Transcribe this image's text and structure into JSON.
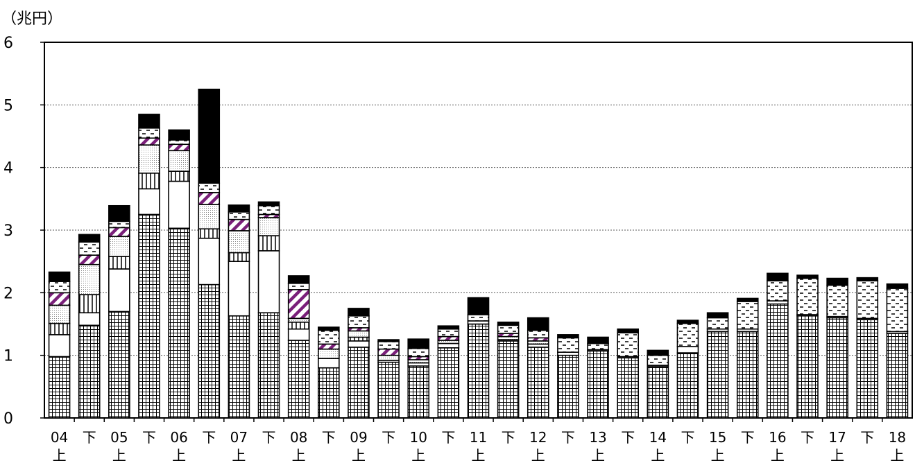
{
  "chart_data": {
    "type": "bar",
    "stacked": true,
    "ylabel": "（兆円）",
    "ylim": [
      0,
      6
    ],
    "yticks": [
      "0",
      "1",
      "2",
      "3",
      "4",
      "5",
      "6"
    ],
    "grid": true,
    "categories": [
      {
        "top": "04",
        "bottom": "上"
      },
      {
        "top": "下",
        "bottom": ""
      },
      {
        "top": "05",
        "bottom": "上"
      },
      {
        "top": "下",
        "bottom": ""
      },
      {
        "top": "06",
        "bottom": "上"
      },
      {
        "top": "下",
        "bottom": ""
      },
      {
        "top": "07",
        "bottom": "上"
      },
      {
        "top": "下",
        "bottom": ""
      },
      {
        "top": "08",
        "bottom": "上"
      },
      {
        "top": "下",
        "bottom": ""
      },
      {
        "top": "09",
        "bottom": "上"
      },
      {
        "top": "下",
        "bottom": ""
      },
      {
        "top": "10",
        "bottom": "上"
      },
      {
        "top": "下",
        "bottom": ""
      },
      {
        "top": "11",
        "bottom": "上"
      },
      {
        "top": "下",
        "bottom": ""
      },
      {
        "top": "12",
        "bottom": "上"
      },
      {
        "top": "下",
        "bottom": ""
      },
      {
        "top": "13",
        "bottom": "上"
      },
      {
        "top": "下",
        "bottom": ""
      },
      {
        "top": "14",
        "bottom": "上"
      },
      {
        "top": "下",
        "bottom": ""
      },
      {
        "top": "15",
        "bottom": "上"
      },
      {
        "top": "下",
        "bottom": ""
      },
      {
        "top": "16",
        "bottom": "上"
      },
      {
        "top": "下",
        "bottom": ""
      },
      {
        "top": "17",
        "bottom": "上"
      },
      {
        "top": "下",
        "bottom": ""
      },
      {
        "top": "18",
        "bottom": "上"
      }
    ],
    "series": [
      {
        "pattern": "grid",
        "color": "#000000",
        "values": [
          0.98,
          1.48,
          1.7,
          3.25,
          3.03,
          2.13,
          1.63,
          1.68,
          1.24,
          0.8,
          1.13,
          0.89,
          0.83,
          1.12,
          1.5,
          1.23,
          1.13,
          1.0,
          1.07,
          0.96,
          0.82,
          1.04,
          1.38,
          1.38,
          1.82,
          1.63,
          1.6,
          1.57,
          1.35
        ]
      },
      {
        "pattern": "white",
        "color": "#ffffff",
        "values": [
          0.35,
          0.2,
          0.68,
          0.41,
          0.75,
          0.74,
          0.87,
          0.99,
          0.18,
          0.15,
          0.1,
          0.03,
          0.05,
          0.07,
          0.05,
          0.02,
          0.05,
          0.05,
          0.02,
          0.02,
          0.02,
          0.1,
          0.04,
          0.04,
          0.05,
          0.02,
          0.02,
          0.02,
          0.03
        ]
      },
      {
        "pattern": "vertical",
        "color": "#000000",
        "values": [
          0.18,
          0.29,
          0.2,
          0.25,
          0.16,
          0.15,
          0.14,
          0.24,
          0.11,
          0.0,
          0.06,
          0.0,
          0.0,
          0.0,
          0.0,
          0.0,
          0.0,
          0.0,
          0.0,
          0.0,
          0.0,
          0.0,
          0.0,
          0.0,
          0.0,
          0.0,
          0.0,
          0.0,
          0.0
        ]
      },
      {
        "pattern": "dots",
        "color": "#999999",
        "values": [
          0.29,
          0.48,
          0.32,
          0.45,
          0.33,
          0.39,
          0.35,
          0.29,
          0.06,
          0.15,
          0.1,
          0.08,
          0.05,
          0.05,
          0.0,
          0.05,
          0.05,
          0.0,
          0.0,
          0.0,
          0.0,
          0.0,
          0.0,
          0.0,
          0.0,
          0.0,
          0.0,
          0.0,
          0.0
        ]
      },
      {
        "pattern": "diagonal",
        "color": "#7a1f7a",
        "values": [
          0.2,
          0.15,
          0.14,
          0.11,
          0.1,
          0.19,
          0.18,
          0.05,
          0.46,
          0.08,
          0.05,
          0.1,
          0.05,
          0.06,
          0.0,
          0.05,
          0.05,
          0.0,
          0.0,
          0.0,
          0.0,
          0.0,
          0.0,
          0.0,
          0.0,
          0.0,
          0.0,
          0.0,
          0.0
        ]
      },
      {
        "pattern": "dashes",
        "color": "#000000",
        "values": [
          0.18,
          0.21,
          0.1,
          0.16,
          0.07,
          0.15,
          0.12,
          0.14,
          0.1,
          0.22,
          0.19,
          0.12,
          0.13,
          0.12,
          0.1,
          0.13,
          0.12,
          0.23,
          0.1,
          0.38,
          0.16,
          0.37,
          0.18,
          0.44,
          0.32,
          0.58,
          0.5,
          0.6,
          0.69
        ]
      },
      {
        "pattern": "black",
        "color": "#000000",
        "values": [
          0.15,
          0.12,
          0.25,
          0.22,
          0.16,
          1.5,
          0.11,
          0.06,
          0.12,
          0.05,
          0.12,
          0.03,
          0.15,
          0.05,
          0.27,
          0.05,
          0.2,
          0.05,
          0.1,
          0.06,
          0.08,
          0.05,
          0.08,
          0.05,
          0.12,
          0.05,
          0.11,
          0.05,
          0.07
        ]
      }
    ]
  }
}
